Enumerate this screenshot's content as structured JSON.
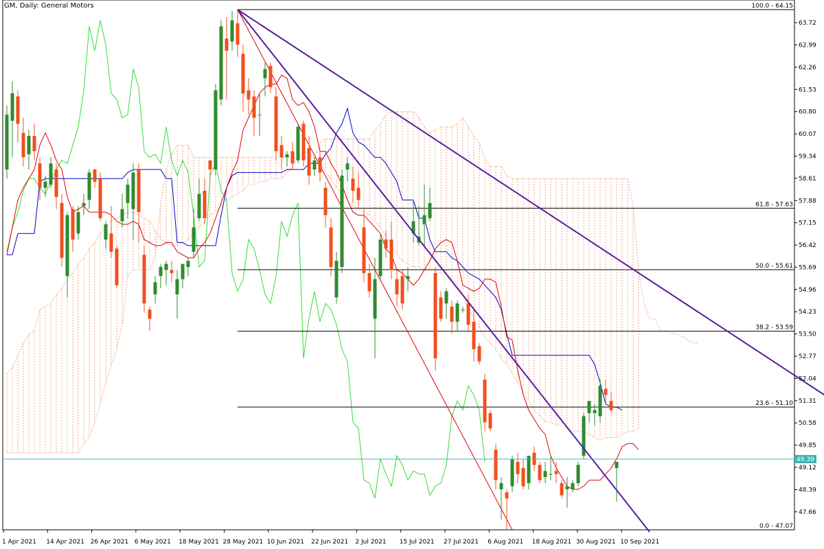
{
  "chart_title": "GM, Daily:  General Motors",
  "colors": {
    "bull": "#2e8b2e",
    "bear": "#f0501e",
    "tenkan": "#e00000",
    "kijun": "#0000c8",
    "chikou": "#33dd33",
    "kumo": "#f4a582",
    "trendline": "#5a1aa0",
    "fib": "#000000",
    "current_price_line": "#3cb4b4"
  },
  "chart_data": {
    "type": "candlestick",
    "title": "GM, Daily:  General Motors",
    "ylim": [
      47.07,
      64.15
    ],
    "y_ticks": [
      "63.72",
      "62.99",
      "62.26",
      "61.53",
      "60.80",
      "60.07",
      "59.34",
      "58.61",
      "57.88",
      "57.15",
      "56.42",
      "55.69",
      "54.96",
      "54.23",
      "53.50",
      "52.77",
      "52.04",
      "51.31",
      "50.58",
      "49.85",
      "49.12",
      "48.39",
      "47.66"
    ],
    "x_ticks": [
      "1 Apr 2021",
      "14 Apr 2021",
      "26 Apr 2021",
      "6 May 2021",
      "18 May 2021",
      "28 May 2021",
      "10 Jun 2021",
      "22 Jun 2021",
      "2 Jul 2021",
      "15 Jul 2021",
      "27 Jul 2021",
      "6 Aug 2021",
      "18 Aug 2021",
      "30 Aug 2021",
      "10 Sep 2021"
    ],
    "current_price": "49.39",
    "fibonacci_levels": [
      {
        "label": "100.0 - 64.15",
        "value": 64.15
      },
      {
        "label": "61.8 - 57.63",
        "value": 57.63
      },
      {
        "label": "50.0 - 55.61",
        "value": 55.61
      },
      {
        "label": "38.2 - 53.59",
        "value": 53.59
      },
      {
        "label": "23.6 - 51.10",
        "value": 51.1
      },
      {
        "label": "0.0 - 47.07",
        "value": 47.07
      }
    ],
    "candles": [
      {
        "o": 58.9,
        "h": 61.0,
        "l": 58.6,
        "c": 60.7
      },
      {
        "o": 60.5,
        "h": 61.8,
        "l": 59.3,
        "c": 61.4
      },
      {
        "o": 61.3,
        "h": 61.5,
        "l": 59.8,
        "c": 60.4
      },
      {
        "o": 60.1,
        "h": 60.6,
        "l": 59.0,
        "c": 59.3
      },
      {
        "o": 59.4,
        "h": 60.2,
        "l": 58.9,
        "c": 60.0
      },
      {
        "o": 60.0,
        "h": 60.4,
        "l": 59.2,
        "c": 59.5
      },
      {
        "o": 59.1,
        "h": 59.3,
        "l": 57.9,
        "c": 58.3
      },
      {
        "o": 58.3,
        "h": 58.7,
        "l": 58.0,
        "c": 58.5
      },
      {
        "o": 58.4,
        "h": 59.3,
        "l": 58.3,
        "c": 59.1
      },
      {
        "o": 58.9,
        "h": 59.1,
        "l": 57.6,
        "c": 58.0
      },
      {
        "o": 57.8,
        "h": 58.1,
        "l": 55.7,
        "c": 56.0
      },
      {
        "o": 55.4,
        "h": 57.5,
        "l": 54.7,
        "c": 57.4
      },
      {
        "o": 57.6,
        "h": 57.7,
        "l": 56.2,
        "c": 56.6
      },
      {
        "o": 56.8,
        "h": 57.7,
        "l": 56.6,
        "c": 57.5
      },
      {
        "o": 57.7,
        "h": 58.1,
        "l": 57.4,
        "c": 57.8
      },
      {
        "o": 57.9,
        "h": 58.9,
        "l": 57.6,
        "c": 58.8
      },
      {
        "o": 58.9,
        "h": 58.9,
        "l": 58.3,
        "c": 58.5
      },
      {
        "o": 58.6,
        "h": 58.8,
        "l": 57.2,
        "c": 57.3
      },
      {
        "o": 56.6,
        "h": 57.2,
        "l": 56.3,
        "c": 57.1
      },
      {
        "o": 56.8,
        "h": 57.7,
        "l": 56.0,
        "c": 56.2
      },
      {
        "o": 56.3,
        "h": 56.4,
        "l": 55.0,
        "c": 55.1
      },
      {
        "o": 57.2,
        "h": 58.1,
        "l": 57.0,
        "c": 57.6
      },
      {
        "o": 57.8,
        "h": 58.6,
        "l": 57.3,
        "c": 58.4
      },
      {
        "o": 57.6,
        "h": 59.1,
        "l": 56.6,
        "c": 58.8
      },
      {
        "o": 58.9,
        "h": 59.1,
        "l": 56.5,
        "c": 57.5
      },
      {
        "o": 56.1,
        "h": 56.4,
        "l": 54.2,
        "c": 54.5
      },
      {
        "o": 54.3,
        "h": 54.4,
        "l": 53.6,
        "c": 54.0
      },
      {
        "o": 54.8,
        "h": 55.4,
        "l": 54.5,
        "c": 55.2
      },
      {
        "o": 55.4,
        "h": 55.8,
        "l": 55.0,
        "c": 55.7
      },
      {
        "o": 55.6,
        "h": 55.9,
        "l": 55.1,
        "c": 55.8
      },
      {
        "o": 55.6,
        "h": 55.9,
        "l": 55.2,
        "c": 55.5
      },
      {
        "o": 54.8,
        "h": 55.6,
        "l": 54.0,
        "c": 55.3
      },
      {
        "o": 55.3,
        "h": 55.7,
        "l": 55.0,
        "c": 55.8
      },
      {
        "o": 55.7,
        "h": 56.0,
        "l": 55.4,
        "c": 55.9
      },
      {
        "o": 56.2,
        "h": 57.6,
        "l": 56.0,
        "c": 57.0
      },
      {
        "o": 57.3,
        "h": 58.6,
        "l": 57.2,
        "c": 58.1
      },
      {
        "o": 58.2,
        "h": 58.6,
        "l": 57.1,
        "c": 57.3
      },
      {
        "o": 59.2,
        "h": 59.2,
        "l": 58.6,
        "c": 58.9
      },
      {
        "o": 58.9,
        "h": 61.7,
        "l": 58.7,
        "c": 61.5
      },
      {
        "o": 61.2,
        "h": 63.8,
        "l": 61.0,
        "c": 63.6
      },
      {
        "o": 63.2,
        "h": 63.9,
        "l": 61.2,
        "c": 62.8
      },
      {
        "o": 63.1,
        "h": 64.1,
        "l": 62.8,
        "c": 63.8
      },
      {
        "o": 63.7,
        "h": 64.15,
        "l": 62.6,
        "c": 63.0
      },
      {
        "o": 62.7,
        "h": 63.0,
        "l": 60.8,
        "c": 61.4
      },
      {
        "o": 61.5,
        "h": 61.9,
        "l": 60.7,
        "c": 61.2
      },
      {
        "o": 61.3,
        "h": 61.5,
        "l": 60.0,
        "c": 60.6
      },
      {
        "o": 60.7,
        "h": 61.4,
        "l": 60.0,
        "c": 60.7
      },
      {
        "o": 61.9,
        "h": 62.4,
        "l": 61.3,
        "c": 62.2
      },
      {
        "o": 62.3,
        "h": 62.4,
        "l": 61.4,
        "c": 61.6
      },
      {
        "o": 61.3,
        "h": 61.6,
        "l": 59.2,
        "c": 59.5
      },
      {
        "o": 59.7,
        "h": 60.0,
        "l": 58.9,
        "c": 59.3
      },
      {
        "o": 59.3,
        "h": 59.5,
        "l": 59.0,
        "c": 59.4
      },
      {
        "o": 59.5,
        "h": 59.8,
        "l": 58.9,
        "c": 59.1
      },
      {
        "o": 59.2,
        "h": 60.4,
        "l": 59.1,
        "c": 60.3
      },
      {
        "o": 60.4,
        "h": 60.5,
        "l": 59.0,
        "c": 59.2
      },
      {
        "o": 59.6,
        "h": 60.0,
        "l": 58.4,
        "c": 58.7
      },
      {
        "o": 58.9,
        "h": 59.3,
        "l": 58.7,
        "c": 59.2
      },
      {
        "o": 59.3,
        "h": 59.5,
        "l": 58.5,
        "c": 58.8
      },
      {
        "o": 58.3,
        "h": 58.5,
        "l": 57.0,
        "c": 57.4
      },
      {
        "o": 57.0,
        "h": 57.3,
        "l": 55.4,
        "c": 55.7
      },
      {
        "o": 54.7,
        "h": 56.2,
        "l": 54.5,
        "c": 55.9
      },
      {
        "o": 55.7,
        "h": 58.9,
        "l": 55.5,
        "c": 58.7
      },
      {
        "o": 58.9,
        "h": 59.3,
        "l": 58.5,
        "c": 59.1
      },
      {
        "o": 58.6,
        "h": 59.0,
        "l": 57.8,
        "c": 58.2
      },
      {
        "o": 58.3,
        "h": 58.8,
        "l": 57.6,
        "c": 57.9
      },
      {
        "o": 57.0,
        "h": 57.6,
        "l": 55.2,
        "c": 55.5
      },
      {
        "o": 55.5,
        "h": 55.8,
        "l": 54.7,
        "c": 54.9
      },
      {
        "o": 54.0,
        "h": 56.0,
        "l": 52.7,
        "c": 55.3
      },
      {
        "o": 55.4,
        "h": 56.8,
        "l": 55.3,
        "c": 56.6
      },
      {
        "o": 56.6,
        "h": 56.9,
        "l": 56.0,
        "c": 56.3
      },
      {
        "o": 56.6,
        "h": 57.2,
        "l": 55.3,
        "c": 55.6
      },
      {
        "o": 55.3,
        "h": 55.6,
        "l": 54.4,
        "c": 54.8
      },
      {
        "o": 55.4,
        "h": 55.6,
        "l": 54.3,
        "c": 54.5
      },
      {
        "o": 55.3,
        "h": 55.7,
        "l": 54.9,
        "c": 55.4
      },
      {
        "o": 56.8,
        "h": 57.9,
        "l": 56.5,
        "c": 57.2
      },
      {
        "o": 56.5,
        "h": 57.7,
        "l": 56.4,
        "c": 56.7
      },
      {
        "o": 57.1,
        "h": 58.4,
        "l": 56.4,
        "c": 57.4
      },
      {
        "o": 57.3,
        "h": 58.3,
        "l": 57.2,
        "c": 57.8
      },
      {
        "o": 55.5,
        "h": 55.7,
        "l": 52.3,
        "c": 52.7
      },
      {
        "o": 54.7,
        "h": 54.9,
        "l": 53.9,
        "c": 54.0
      },
      {
        "o": 54.5,
        "h": 55.0,
        "l": 54.0,
        "c": 54.9
      },
      {
        "o": 54.4,
        "h": 54.6,
        "l": 53.5,
        "c": 53.9
      },
      {
        "o": 53.9,
        "h": 54.6,
        "l": 53.6,
        "c": 54.5
      },
      {
        "o": 54.3,
        "h": 54.4,
        "l": 54.2,
        "c": 54.3
      },
      {
        "o": 54.5,
        "h": 54.8,
        "l": 53.6,
        "c": 53.8
      },
      {
        "o": 53.9,
        "h": 54.3,
        "l": 52.6,
        "c": 53.0
      },
      {
        "o": 53.1,
        "h": 53.2,
        "l": 52.5,
        "c": 52.6
      },
      {
        "o": 52.0,
        "h": 52.2,
        "l": 50.3,
        "c": 50.6
      },
      {
        "o": 50.9,
        "h": 51.0,
        "l": 50.3,
        "c": 50.4
      },
      {
        "o": 49.7,
        "h": 49.9,
        "l": 48.4,
        "c": 48.7
      },
      {
        "o": 48.4,
        "h": 48.8,
        "l": 47.4,
        "c": 48.6
      },
      {
        "o": 48.3,
        "h": 48.4,
        "l": 47.07,
        "c": 48.1
      },
      {
        "o": 48.5,
        "h": 49.5,
        "l": 48.3,
        "c": 49.4
      },
      {
        "o": 49.3,
        "h": 49.6,
        "l": 48.6,
        "c": 48.9
      },
      {
        "o": 49.1,
        "h": 49.4,
        "l": 48.4,
        "c": 48.5
      },
      {
        "o": 48.6,
        "h": 49.4,
        "l": 48.4,
        "c": 49.5
      },
      {
        "o": 49.6,
        "h": 49.8,
        "l": 49.0,
        "c": 49.2
      },
      {
        "o": 49.2,
        "h": 49.3,
        "l": 48.6,
        "c": 48.7
      },
      {
        "o": 48.8,
        "h": 49.3,
        "l": 48.6,
        "c": 49.0
      },
      {
        "o": 48.9,
        "h": 49.5,
        "l": 48.7,
        "c": 48.9
      },
      {
        "o": 49.0,
        "h": 49.3,
        "l": 48.6,
        "c": 48.9
      },
      {
        "o": 48.6,
        "h": 48.7,
        "l": 48.1,
        "c": 48.2
      },
      {
        "o": 48.4,
        "h": 48.8,
        "l": 47.8,
        "c": 48.5
      },
      {
        "o": 48.4,
        "h": 48.7,
        "l": 48.3,
        "c": 48.6
      },
      {
        "o": 48.6,
        "h": 49.3,
        "l": 48.5,
        "c": 49.2
      },
      {
        "o": 49.5,
        "h": 50.9,
        "l": 49.4,
        "c": 50.8
      },
      {
        "o": 50.9,
        "h": 51.3,
        "l": 50.6,
        "c": 51.3
      },
      {
        "o": 50.9,
        "h": 51.2,
        "l": 50.5,
        "c": 51.0
      },
      {
        "o": 50.8,
        "h": 52.0,
        "l": 50.6,
        "c": 51.8
      },
      {
        "o": 51.7,
        "h": 52.0,
        "l": 51.2,
        "c": 51.5
      },
      {
        "o": 51.3,
        "h": 51.6,
        "l": 50.9,
        "c": 51.0
      },
      {
        "o": 49.1,
        "h": 49.3,
        "l": 48.0,
        "c": 49.3
      }
    ],
    "tenkan": [
      56.1,
      57.0,
      57.9,
      58.3,
      58.6,
      58.9,
      59.7,
      60.1,
      59.7,
      59.2,
      58.9,
      58.0,
      57.5,
      57.6,
      57.7,
      57.5,
      57.5,
      57.5,
      57.5,
      57.4,
      57.2,
      57.1,
      57.1,
      57.2,
      57.1,
      56.6,
      56.5,
      56.4,
      56.4,
      56.5,
      56.5,
      56.2,
      56.1,
      56.0,
      56.0,
      56.3,
      56.5,
      56.8,
      57.3,
      57.8,
      58.3,
      58.8,
      59.2,
      60.2,
      60.6,
      61.0,
      61.4,
      61.6,
      61.7,
      61.7,
      62.0,
      61.9,
      61.2,
      61.0,
      61.1,
      60.8,
      60.3,
      59.5,
      59.5,
      59.1,
      58.8,
      58.4,
      57.9,
      57.5,
      57.4,
      57.4,
      57.2,
      57.0,
      56.8,
      56.3,
      56.1,
      55.6,
      55.5,
      55.3,
      55.1,
      55.3,
      55.6,
      55.9,
      56.3,
      56.5,
      56.6,
      56.5,
      55.9,
      55.1,
      55.0,
      54.9,
      55.0,
      55.3,
      55.3,
      55.2,
      54.4,
      53.4,
      53.3,
      52.3,
      51.5,
      51.0,
      50.7,
      50.4,
      50.2,
      49.5,
      49.1,
      48.8,
      48.5,
      48.4,
      48.4,
      48.5,
      48.7,
      48.7,
      48.7,
      48.9,
      49.1,
      49.4,
      49.8,
      49.9,
      49.9,
      49.7
    ],
    "kijun": [
      56.1,
      56.1,
      56.8,
      56.8,
      56.8,
      56.8,
      58.5,
      58.6,
      58.6,
      58.6,
      58.6,
      58.6,
      58.6,
      58.6,
      58.6,
      58.6,
      58.6,
      58.6,
      58.6,
      58.6,
      58.6,
      58.6,
      58.8,
      58.9,
      58.9,
      58.9,
      58.9,
      58.9,
      58.9,
      58.6,
      58.6,
      56.5,
      56.5,
      56.4,
      56.4,
      56.4,
      56.4,
      56.4,
      56.4,
      57.4,
      58.3,
      58.7,
      58.8,
      58.8,
      58.8,
      58.8,
      58.8,
      58.8,
      58.8,
      58.8,
      58.8,
      58.9,
      58.9,
      58.9,
      58.9,
      59.1,
      59.1,
      59.1,
      59.4,
      59.6,
      60.1,
      60.4,
      60.9,
      60.1,
      59.8,
      59.7,
      59.5,
      59.3,
      59.3,
      59.1,
      58.8,
      58.5,
      57.9,
      57.9,
      57.9,
      57.3,
      57.3,
      56.6,
      56.2,
      56.2,
      56.2,
      56.0,
      55.9,
      55.7,
      55.5,
      55.4,
      55.3,
      55.1,
      54.9,
      54.7,
      54.3,
      53.5,
      52.8,
      52.8,
      52.8,
      52.8,
      52.8,
      52.8,
      52.8,
      52.8,
      52.8,
      52.8,
      52.8,
      52.8,
      52.8,
      52.8,
      52.8,
      52.5,
      51.9,
      51.2,
      51.1,
      51.1,
      51.0
    ],
    "chikou": [
      56.2,
      57.0,
      57.5,
      58.2,
      58.6,
      58.6,
      58.3,
      58.1,
      58.5,
      58.9,
      59.2,
      59.1,
      59.7,
      60.3,
      61.5,
      63.6,
      62.8,
      63.8,
      63.0,
      61.4,
      61.2,
      60.6,
      60.7,
      62.2,
      61.6,
      59.5,
      59.3,
      59.4,
      59.1,
      60.3,
      59.2,
      58.7,
      59.2,
      58.8,
      57.4,
      55.7,
      55.9,
      58.7,
      59.1,
      58.2,
      57.9,
      55.5,
      54.9,
      55.3,
      56.6,
      56.3,
      55.6,
      54.8,
      54.5,
      55.4,
      57.2,
      56.7,
      57.4,
      57.8,
      52.7,
      54.0,
      54.9,
      53.9,
      54.5,
      54.3,
      53.8,
      53.0,
      52.6,
      50.6,
      50.4,
      48.7,
      48.6,
      48.1,
      49.4,
      48.9,
      48.5,
      49.5,
      49.2,
      48.7,
      49.0,
      48.9,
      48.9,
      48.2,
      48.5,
      48.6,
      49.2,
      50.8,
      51.3,
      51.0,
      51.8,
      51.5,
      51.0,
      49.3
    ],
    "senkou_a": [
      52.2,
      52.4,
      52.8,
      53.2,
      53.5,
      53.6,
      54.3,
      54.4,
      54.5,
      54.8,
      55.0,
      55.3,
      55.5,
      55.8,
      56.0,
      56.3,
      56.5,
      56.8,
      57.0,
      57.2,
      57.3,
      57.4,
      57.5,
      57.5,
      57.4,
      57.3,
      57.2,
      56.9,
      56.6,
      56.5,
      56.4,
      56.4,
      56.5,
      56.6,
      56.9,
      57.0,
      57.2,
      57.4,
      57.5,
      57.7,
      57.9,
      58.0,
      58.1,
      58.2,
      58.4,
      58.4,
      58.5,
      58.5,
      58.6,
      58.6,
      58.6,
      58.8,
      59.0,
      59.3,
      59.5,
      59.4,
      59.3,
      59.1,
      58.8,
      58.6,
      58.3,
      58.1,
      57.9,
      57.7,
      57.6,
      57.5,
      57.4,
      57.2,
      57.0,
      56.7,
      56.4,
      56.1,
      55.9,
      55.8,
      55.7,
      55.7,
      55.6,
      55.6,
      55.6,
      55.5,
      55.5,
      55.3,
      55.1,
      54.8,
      54.4,
      54.0,
      53.7,
      53.4,
      53.2,
      53.0,
      52.7,
      52.5,
      52.2,
      51.9,
      51.6,
      51.3,
      51.0,
      50.8,
      50.6,
      50.6,
      50.5,
      50.5,
      50.4,
      50.3,
      50.3,
      50.3,
      50.2,
      50.1,
      50.0,
      50.1,
      50.1,
      50.1,
      50.2,
      50.3,
      50.3,
      50.4
    ],
    "senkou_b": [
      49.6,
      49.6,
      49.6,
      49.6,
      49.6,
      49.6,
      49.6,
      49.6,
      49.6,
      49.6,
      49.6,
      49.6,
      49.6,
      49.6,
      49.9,
      50.1,
      50.6,
      51.2,
      51.9,
      52.5,
      53.0,
      53.8,
      55.4,
      55.6,
      55.6,
      55.6,
      55.6,
      56.0,
      57.8,
      58.9,
      59.4,
      59.7,
      59.7,
      59.7,
      59.3,
      59.3,
      59.3,
      59.3,
      59.3,
      59.3,
      59.3,
      59.3,
      59.3,
      59.3,
      59.3,
      59.3,
      59.3,
      59.3,
      59.3,
      59.3,
      59.3,
      59.3,
      59.3,
      59.3,
      59.3,
      59.3,
      59.3,
      59.8,
      59.9,
      59.9,
      59.9,
      59.9,
      59.9,
      59.9,
      59.9,
      59.9,
      59.9,
      60.2,
      60.4,
      60.7,
      60.8,
      60.8,
      60.8,
      60.8,
      60.8,
      60.6,
      60.3,
      60.1,
      60.2,
      60.3,
      60.3,
      60.3,
      60.4,
      60.6,
      60.3,
      60.0,
      59.8,
      59.3,
      59.0,
      59.0,
      59.0,
      58.7,
      58.6,
      58.6,
      58.6,
      58.6,
      58.6,
      58.6,
      58.6,
      58.6,
      58.6,
      58.6,
      58.6,
      58.6,
      58.6,
      58.6,
      58.6,
      58.6,
      58.6,
      58.6,
      58.6,
      58.6,
      58.6,
      58.6,
      57.7,
      55.6,
      54.5,
      54.0,
      54.0,
      53.6,
      53.6,
      53.5,
      53.5,
      53.4,
      53.3,
      53.2,
      53.2
    ],
    "trendlines": [
      {
        "from": {
          "bar": 42,
          "price": 64.15
        },
        "to": {
          "bar": 164,
          "price": 49.7
        }
      },
      {
        "from": {
          "bar": 42,
          "price": 64.15
        },
        "to": {
          "bar": 117,
          "price": 47.0
        }
      }
    ],
    "red_line": {
      "from": {
        "bar": 42,
        "price": 64.15
      },
      "to": {
        "bar": 92,
        "price": 47.07
      }
    }
  }
}
